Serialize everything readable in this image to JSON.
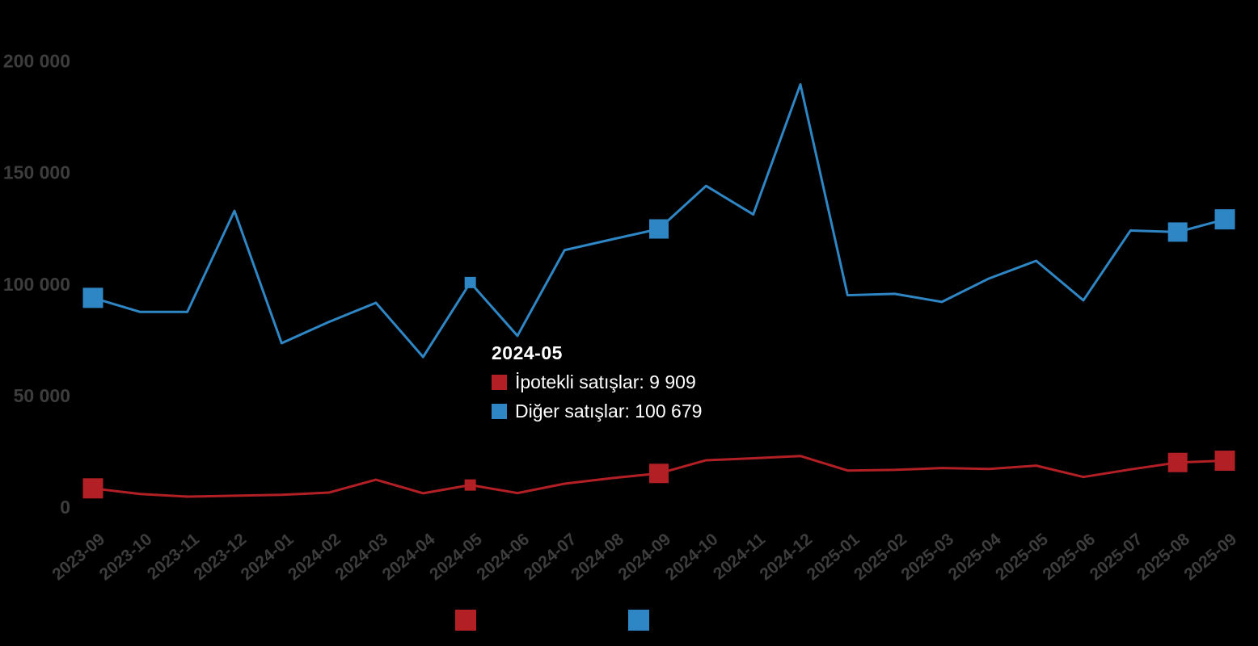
{
  "colors": {
    "background": "#000000",
    "axis_text": "#3d3d3d",
    "tooltip_text": "#ffffff",
    "series_red": "#b21f24",
    "series_blue": "#2e86c4"
  },
  "tooltip": {
    "title": "2024-05",
    "items": [
      {
        "series": "İpotekli satışlar",
        "value": "9 909",
        "text": "İpotekli satışlar: 9 909",
        "color": "#b21f24"
      },
      {
        "series": "Diğer satışlar",
        "value": "100 679",
        "text": "Diğer satışlar: 100 679",
        "color": "#2e86c4"
      }
    ]
  },
  "chart_data": {
    "type": "line",
    "title": "",
    "xlabel": "",
    "ylabel": "",
    "grid": false,
    "legend_position": "bottom",
    "legend_labels_visible": false,
    "ylim": [
      0,
      200000
    ],
    "yticks": [
      0,
      50000,
      100000,
      150000,
      200000
    ],
    "ytick_labels": [
      "0",
      "50 000",
      "100 000",
      "150 000",
      "200 000"
    ],
    "categories": [
      "2023-09",
      "2023-10",
      "2023-11",
      "2023-12",
      "2024-01",
      "2024-02",
      "2024-03",
      "2024-04",
      "2024-05",
      "2024-06",
      "2024-07",
      "2024-08",
      "2024-09",
      "2024-10",
      "2024-11",
      "2024-12",
      "2025-01",
      "2025-02",
      "2025-03",
      "2025-04",
      "2025-05",
      "2025-06",
      "2025-07",
      "2025-08",
      "2025-09"
    ],
    "series": [
      {
        "name": "İpotekli satışlar",
        "color": "#b21f24",
        "values": [
          8400,
          5900,
          4700,
          5100,
          5500,
          6500,
          12300,
          6200,
          9909,
          6300,
          10500,
          13000,
          15100,
          21000,
          21900,
          22900,
          16400,
          16700,
          17500,
          17100,
          18600,
          13500,
          16900,
          20000,
          20800
        ]
      },
      {
        "name": "Diğer satışlar",
        "color": "#2e86c4",
        "values": [
          93800,
          87500,
          87500,
          132800,
          73500,
          83000,
          91600,
          67300,
          100679,
          76800,
          115200,
          120000,
          124700,
          144000,
          131200,
          189500,
          95000,
          95600,
          92000,
          102500,
          110400,
          92700,
          124000,
          123300,
          129000
        ]
      }
    ],
    "highlighted_point": "2024-05",
    "marker_points": [
      {
        "index": 0,
        "category": "2023-09",
        "size": 25
      },
      {
        "index": 8,
        "category": "2024-05",
        "size": 14
      },
      {
        "index": 12,
        "category": "2024-09",
        "size": 24
      },
      {
        "index": 23,
        "category": "2025-08",
        "size": 24
      },
      {
        "index": 24,
        "category": "2025-09",
        "size": 25
      }
    ]
  }
}
